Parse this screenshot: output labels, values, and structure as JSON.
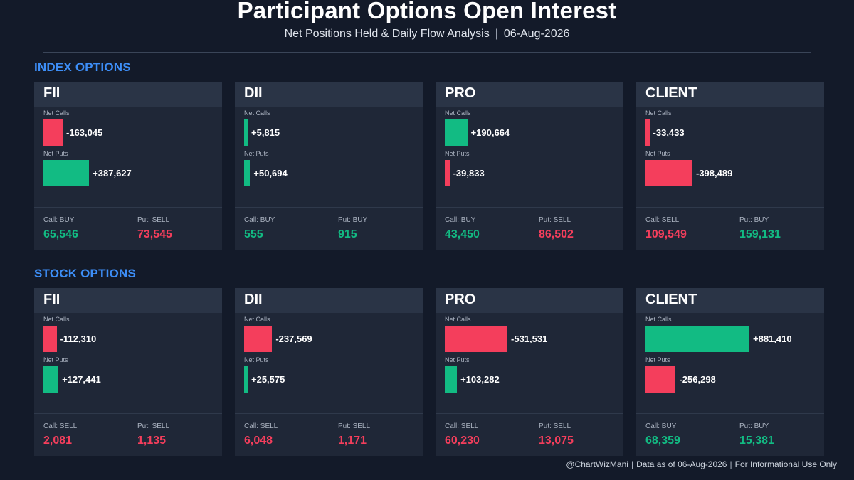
{
  "header": {
    "title": "Participant Options Open Interest",
    "subtitle": "Net Positions Held & Daily Flow Analysis",
    "separator": "|",
    "date": "06-Aug-2026"
  },
  "labels": {
    "net_calls": "Net Calls",
    "net_puts": "Net Puts"
  },
  "colors": {
    "positive": "#12bb83",
    "negative": "#f43e5c",
    "accent": "#3d8ef7"
  },
  "chart_data": {
    "type": "bar",
    "sections": [
      {
        "title": "INDEX OPTIONS",
        "participants": [
          {
            "name": "FII",
            "net_calls": -163045,
            "net_calls_text": "-163,045",
            "net_puts": 387627,
            "net_puts_text": "+387,627",
            "stat1_label": "Call: BUY",
            "stat1_value": "65,546",
            "stat1_sign": "positive",
            "stat2_label": "Put: SELL",
            "stat2_value": "73,545",
            "stat2_sign": "negative"
          },
          {
            "name": "DII",
            "net_calls": 5815,
            "net_calls_text": "+5,815",
            "net_puts": 50694,
            "net_puts_text": "+50,694",
            "stat1_label": "Call: BUY",
            "stat1_value": "555",
            "stat1_sign": "positive",
            "stat2_label": "Put: BUY",
            "stat2_value": "915",
            "stat2_sign": "positive"
          },
          {
            "name": "PRO",
            "net_calls": 190664,
            "net_calls_text": "+190,664",
            "net_puts": -39833,
            "net_puts_text": "-39,833",
            "stat1_label": "Call: BUY",
            "stat1_value": "43,450",
            "stat1_sign": "positive",
            "stat2_label": "Put: SELL",
            "stat2_value": "86,502",
            "stat2_sign": "negative"
          },
          {
            "name": "CLIENT",
            "net_calls": -33433,
            "net_calls_text": "-33,433",
            "net_puts": -398489,
            "net_puts_text": "-398,489",
            "stat1_label": "Call: SELL",
            "stat1_value": "109,549",
            "stat1_sign": "negative",
            "stat2_label": "Put: BUY",
            "stat2_value": "159,131",
            "stat2_sign": "positive"
          }
        ]
      },
      {
        "title": "STOCK OPTIONS",
        "participants": [
          {
            "name": "FII",
            "net_calls": -112310,
            "net_calls_text": "-112,310",
            "net_puts": 127441,
            "net_puts_text": "+127,441",
            "stat1_label": "Call: SELL",
            "stat1_value": "2,081",
            "stat1_sign": "negative",
            "stat2_label": "Put: SELL",
            "stat2_value": "1,135",
            "stat2_sign": "negative"
          },
          {
            "name": "DII",
            "net_calls": -237569,
            "net_calls_text": "-237,569",
            "net_puts": 25575,
            "net_puts_text": "+25,575",
            "stat1_label": "Call: SELL",
            "stat1_value": "6,048",
            "stat1_sign": "negative",
            "stat2_label": "Put: SELL",
            "stat2_value": "1,171",
            "stat2_sign": "negative"
          },
          {
            "name": "PRO",
            "net_calls": -531531,
            "net_calls_text": "-531,531",
            "net_puts": 103282,
            "net_puts_text": "+103,282",
            "stat1_label": "Call: SELL",
            "stat1_value": "60,230",
            "stat1_sign": "negative",
            "stat2_label": "Put: SELL",
            "stat2_value": "13,075",
            "stat2_sign": "negative"
          },
          {
            "name": "CLIENT",
            "net_calls": 881410,
            "net_calls_text": "+881,410",
            "net_puts": -256298,
            "net_puts_text": "-256,298",
            "stat1_label": "Call: BUY",
            "stat1_value": "68,359",
            "stat1_sign": "positive",
            "stat2_label": "Put: BUY",
            "stat2_value": "15,381",
            "stat2_sign": "positive"
          }
        ]
      }
    ]
  },
  "footer": {
    "handle": "@ChartWizMani",
    "data_note": "Data as of 06-Aug-2026",
    "disclaimer": "For Informational Use Only",
    "separator": "|"
  }
}
